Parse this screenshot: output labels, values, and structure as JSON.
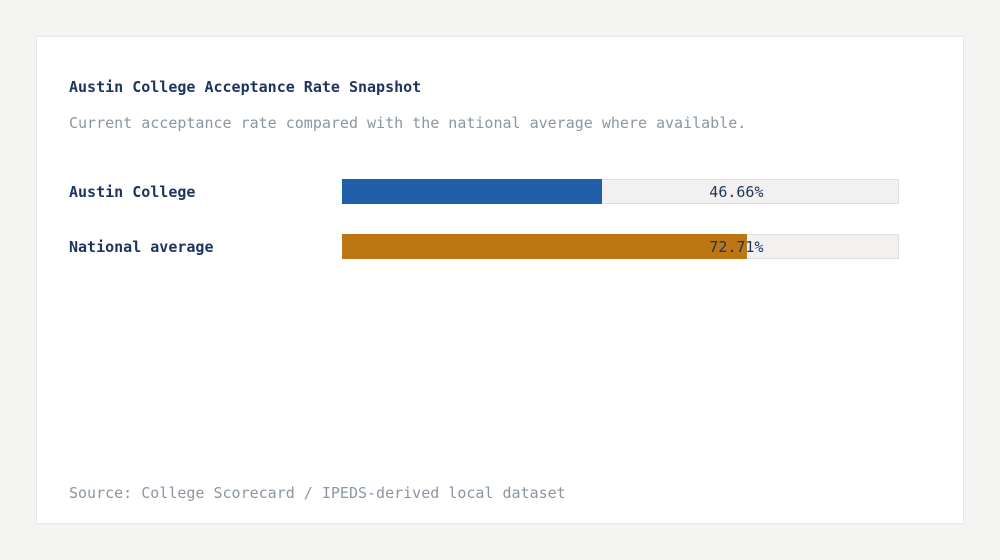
{
  "header": {
    "title": "Austin College Acceptance Rate Snapshot",
    "subtitle": "Current acceptance rate compared with the national average where available."
  },
  "chart_data": {
    "type": "bar",
    "orientation": "horizontal",
    "title": "Austin College Acceptance Rate Snapshot",
    "categories": [
      "Austin College",
      "National average"
    ],
    "values": [
      46.66,
      72.71
    ],
    "value_labels": [
      "46.66%",
      "72.71%"
    ],
    "xlim": [
      0,
      100
    ],
    "bar_colors": [
      "#1f5fa8",
      "#bc7613"
    ],
    "track_color": "#f2f1ef",
    "grid": "off",
    "legend": "none"
  },
  "footer": {
    "source": "Source: College Scorecard / IPEDS-derived local dataset"
  },
  "colors": {
    "accent_blue": "#1f5fa8",
    "accent_orange": "#bc7613",
    "navy_text": "#1b355f",
    "gray_text": "#8a96a3",
    "card_bg": "#ffffff",
    "page_bg": "#f4f4f2",
    "track_bg": "#f2f1ef",
    "track_border": "#dce1e8"
  }
}
